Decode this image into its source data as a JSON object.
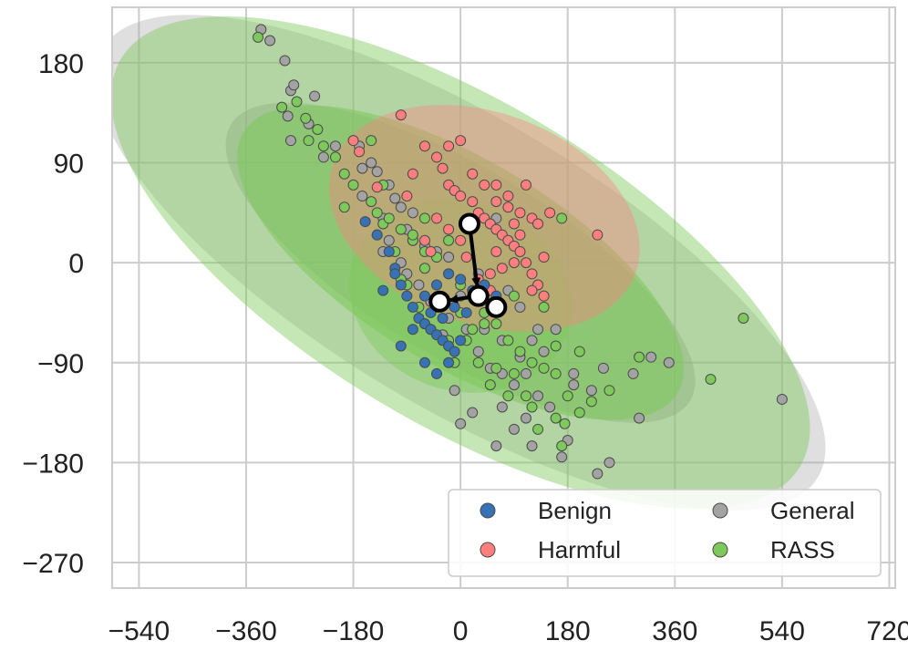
{
  "chart_data": {
    "type": "scatter",
    "title": "",
    "xlabel": "",
    "ylabel": "",
    "xlim": [
      -585,
      730
    ],
    "ylim": [
      -293,
      230
    ],
    "xticks": [
      -540,
      -360,
      -180,
      0,
      180,
      360,
      540,
      720
    ],
    "yticks": [
      180,
      90,
      0,
      -90,
      -180,
      -270
    ],
    "xtick_labels": [
      "−540",
      "−360",
      "−180",
      "0",
      "180",
      "360",
      "540",
      "720"
    ],
    "ytick_labels": [
      "180",
      "90",
      "0",
      "−90",
      "−180",
      "−270"
    ],
    "grid": true,
    "legend": {
      "position": "lower-right",
      "columns": 2,
      "entries": [
        {
          "name": "Benign",
          "color": "#3672B4"
        },
        {
          "name": "General",
          "color": "#A3A3A3"
        },
        {
          "name": "Harmful",
          "color": "#FF7F7F"
        },
        {
          "name": "RASS",
          "color": "#7DC95B"
        }
      ]
    },
    "series": [
      {
        "name": "General",
        "color": "#A3A3A3",
        "ellipses": [
          {
            "center": [
              0,
              0
            ],
            "width": 1400,
            "height": 260,
            "angle_deg": -31,
            "opacity": 0.35
          },
          {
            "center": [
              0,
              0
            ],
            "width": 900,
            "height": 170,
            "angle_deg": -31,
            "opacity": 0.5
          }
        ],
        "points": [
          [
            -335,
            210
          ],
          [
            -320,
            200
          ],
          [
            -295,
            182
          ],
          [
            -285,
            155
          ],
          [
            -280,
            160
          ],
          [
            -290,
            132
          ],
          [
            -285,
            110
          ],
          [
            -245,
            150
          ],
          [
            -255,
            125
          ],
          [
            -230,
            95
          ],
          [
            -210,
            105
          ],
          [
            -170,
            105
          ],
          [
            -165,
            85
          ],
          [
            -150,
            90
          ],
          [
            -140,
            82
          ],
          [
            -120,
            70
          ],
          [
            -110,
            58
          ],
          [
            -100,
            50
          ],
          [
            -90,
            30
          ],
          [
            -80,
            20
          ],
          [
            -60,
            15
          ],
          [
            -40,
            10
          ],
          [
            -20,
            5
          ],
          [
            -165,
            60
          ],
          [
            -130,
            40
          ],
          [
            -120,
            20
          ],
          [
            -90,
            -10
          ],
          [
            -70,
            -20
          ],
          [
            -50,
            -35
          ],
          [
            -20,
            -50
          ],
          [
            10,
            -60
          ],
          [
            30,
            -80
          ],
          [
            50,
            -95
          ],
          [
            70,
            -100
          ],
          [
            90,
            -110
          ],
          [
            110,
            -100
          ],
          [
            130,
            -120
          ],
          [
            150,
            -130
          ],
          [
            190,
            -100
          ],
          [
            220,
            -115
          ],
          [
            240,
            -95
          ],
          [
            290,
            -100
          ],
          [
            320,
            -85
          ],
          [
            350,
            -90
          ],
          [
            70,
            -130
          ],
          [
            90,
            -150
          ],
          [
            110,
            -140
          ],
          [
            120,
            -165
          ],
          [
            170,
            -175
          ],
          [
            230,
            -190
          ],
          [
            300,
            -140
          ],
          [
            250,
            -180
          ],
          [
            180,
            -160
          ],
          [
            60,
            -165
          ],
          [
            20,
            -135
          ],
          [
            0,
            -145
          ],
          [
            -10,
            -115
          ],
          [
            -60,
            -55
          ],
          [
            0,
            -30
          ],
          [
            40,
            -60
          ],
          [
            140,
            -80
          ],
          [
            160,
            -60
          ],
          [
            100,
            -40
          ],
          [
            80,
            -25
          ],
          [
            60,
            -40
          ],
          [
            30,
            -10
          ],
          [
            540,
            -123
          ],
          [
            190,
            -110
          ],
          [
            100,
            -85
          ],
          [
            70,
            -70
          ],
          [
            -30,
            -65
          ],
          [
            -100,
            0
          ],
          [
            -130,
            10
          ],
          [
            -80,
            45
          ],
          [
            60,
            40
          ],
          [
            120,
            -70
          ],
          [
            130,
            -60
          ]
        ]
      },
      {
        "name": "RASS",
        "color": "#7DC95B",
        "ellipses": [
          {
            "center": [
              0,
              0
            ],
            "width": 1330,
            "height": 290,
            "angle_deg": -31,
            "opacity": 0.45
          },
          {
            "center": [
              0,
              0
            ],
            "width": 850,
            "height": 185,
            "angle_deg": -31,
            "opacity": 0.55
          },
          {
            "center": [
              0,
              -30
            ],
            "width": 380,
            "height": 170,
            "angle_deg": -20,
            "opacity": 0.45
          }
        ],
        "points": [
          [
            -340,
            203
          ],
          [
            -300,
            140
          ],
          [
            -275,
            145
          ],
          [
            -260,
            130
          ],
          [
            -255,
            110
          ],
          [
            -240,
            120
          ],
          [
            -230,
            105
          ],
          [
            -210,
            95
          ],
          [
            -195,
            80
          ],
          [
            -180,
            70
          ],
          [
            -150,
            55
          ],
          [
            -140,
            45
          ],
          [
            -130,
            35
          ],
          [
            -100,
            30
          ],
          [
            -80,
            20
          ],
          [
            -60,
            10
          ],
          [
            -40,
            5
          ],
          [
            -20,
            -10
          ],
          [
            0,
            -20
          ],
          [
            20,
            -30
          ],
          [
            40,
            -45
          ],
          [
            60,
            -55
          ],
          [
            80,
            -70
          ],
          [
            100,
            -80
          ],
          [
            120,
            -90
          ],
          [
            140,
            -95
          ],
          [
            160,
            -100
          ],
          [
            180,
            -120
          ],
          [
            200,
            -135
          ],
          [
            220,
            -125
          ],
          [
            250,
            -115
          ],
          [
            300,
            -85
          ],
          [
            420,
            -105
          ],
          [
            475,
            -50
          ],
          [
            170,
            -165
          ],
          [
            160,
            -140
          ],
          [
            120,
            -130
          ],
          [
            80,
            -120
          ],
          [
            60,
            -95
          ],
          [
            30,
            -90
          ],
          [
            10,
            -70
          ],
          [
            -20,
            -70
          ],
          [
            -50,
            -60
          ],
          [
            -70,
            -40
          ],
          [
            -90,
            -20
          ],
          [
            -110,
            10
          ],
          [
            -120,
            40
          ],
          [
            -60,
            40
          ],
          [
            -20,
            20
          ],
          [
            40,
            -20
          ],
          [
            90,
            -30
          ],
          [
            140,
            -40
          ],
          [
            170,
            40
          ],
          [
            -195,
            50
          ],
          [
            -150,
            110
          ],
          [
            -130,
            70
          ],
          [
            -140,
            25
          ],
          [
            -100,
            -15
          ],
          [
            -40,
            -40
          ],
          [
            0,
            -45
          ],
          [
            20,
            -60
          ],
          [
            40,
            -55
          ],
          [
            -10,
            -90
          ],
          [
            50,
            -110
          ],
          [
            90,
            -100
          ],
          [
            110,
            -120
          ],
          [
            -80,
            25
          ],
          [
            -60,
            -5
          ],
          [
            160,
            -75
          ],
          [
            200,
            -80
          ],
          [
            130,
            -150
          ],
          [
            175,
            -145
          ]
        ]
      },
      {
        "name": "Harmful",
        "color": "#FF7F7F",
        "ellipses": [
          {
            "center": [
              40,
              40
            ],
            "width": 540,
            "height": 190,
            "angle_deg": -20,
            "opacity": 0.4
          }
        ],
        "points": [
          [
            -100,
            133
          ],
          [
            -180,
            110
          ],
          [
            -170,
            100
          ],
          [
            -90,
            60
          ],
          [
            -80,
            80
          ],
          [
            -60,
            105
          ],
          [
            -40,
            95
          ],
          [
            -30,
            85
          ],
          [
            -20,
            70
          ],
          [
            -10,
            65
          ],
          [
            0,
            60
          ],
          [
            20,
            55
          ],
          [
            30,
            45
          ],
          [
            40,
            40
          ],
          [
            50,
            35
          ],
          [
            60,
            30
          ],
          [
            70,
            25
          ],
          [
            80,
            20
          ],
          [
            90,
            15
          ],
          [
            100,
            10
          ],
          [
            110,
            0
          ],
          [
            120,
            -10
          ],
          [
            130,
            -20
          ],
          [
            140,
            -30
          ],
          [
            60,
            55
          ],
          [
            80,
            50
          ],
          [
            100,
            45
          ],
          [
            120,
            40
          ],
          [
            130,
            35
          ],
          [
            100,
            25
          ],
          [
            90,
            0
          ],
          [
            70,
            -5
          ],
          [
            50,
            -10
          ],
          [
            30,
            -15
          ],
          [
            10,
            5
          ],
          [
            0,
            20
          ],
          [
            -20,
            30
          ],
          [
            -40,
            40
          ],
          [
            -60,
            20
          ],
          [
            -50,
            10
          ],
          [
            20,
            80
          ],
          [
            40,
            70
          ],
          [
            60,
            70
          ],
          [
            80,
            60
          ],
          [
            0,
            110
          ],
          [
            -20,
            105
          ],
          [
            230,
            25
          ],
          [
            140,
            5
          ],
          [
            120,
            -25
          ],
          [
            60,
            10
          ],
          [
            50,
            -25
          ],
          [
            150,
            45
          ],
          [
            -140,
            68
          ],
          [
            110,
            70
          ],
          [
            90,
            35
          ]
        ]
      },
      {
        "name": "Benign",
        "color": "#3672B4",
        "ellipses": [],
        "points": [
          [
            -160,
            37
          ],
          [
            -140,
            25
          ],
          [
            -120,
            10
          ],
          [
            -110,
            -5
          ],
          [
            -100,
            -20
          ],
          [
            -90,
            -30
          ],
          [
            -80,
            -40
          ],
          [
            -70,
            -50
          ],
          [
            -60,
            -55
          ],
          [
            -50,
            -60
          ],
          [
            -40,
            -65
          ],
          [
            -30,
            -70
          ],
          [
            -20,
            -75
          ],
          [
            -10,
            -80
          ],
          [
            0,
            -70
          ],
          [
            -60,
            -90
          ],
          [
            -40,
            -100
          ],
          [
            -20,
            -90
          ],
          [
            -100,
            -75
          ],
          [
            -80,
            -60
          ],
          [
            -60,
            -30
          ],
          [
            -40,
            -20
          ],
          [
            -20,
            -10
          ],
          [
            0,
            -15
          ],
          [
            20,
            -25
          ],
          [
            40,
            -20
          ],
          [
            60,
            -30
          ],
          [
            -110,
            -10
          ],
          [
            -130,
            -25
          ],
          [
            -50,
            -45
          ],
          [
            -30,
            -50
          ],
          [
            -10,
            -40
          ],
          [
            10,
            -45
          ]
        ]
      }
    ],
    "centroid_path": {
      "color": "#000000",
      "points": [
        [
          15,
          35
        ],
        [
          30,
          -30
        ],
        [
          -35,
          -35
        ]
      ],
      "extra_markers": [
        [
          60,
          -40
        ]
      ],
      "marker_fill": "#FFFFFF"
    }
  }
}
